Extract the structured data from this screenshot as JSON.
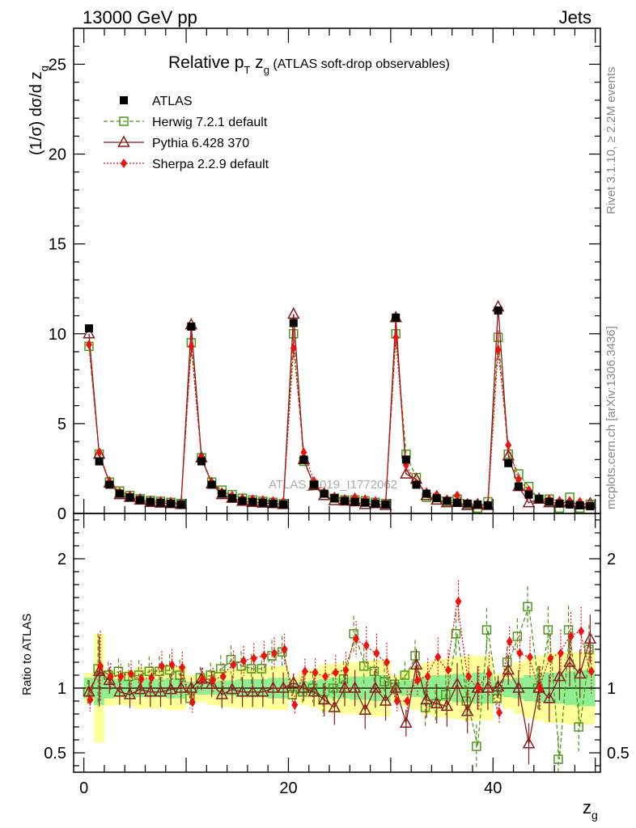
{
  "header": {
    "energy": "13000 GeV pp",
    "process": "Jets"
  },
  "title": {
    "main": "Relative p",
    "sub_T": "T",
    "mid": " z",
    "sub_g": "g",
    "tail": " (ATLAS soft-drop observables)"
  },
  "side_labels": {
    "rivet": "Rivet 3.1.10, ≥ 2.2M events",
    "mcplots": "mcplots.cern.ch [arXiv:1306.3436]"
  },
  "watermark": "ATLAS_2019_I1772062",
  "axes": {
    "ylabel_main": "(1/σ) dσ/d z",
    "ylabel_main_sub": "g",
    "ylabel_ratio": "Ratio to ATLAS",
    "xlabel": "z",
    "xlabel_sub": "g"
  },
  "colors": {
    "ATLAS": "#000000",
    "Herwig": "#4a9a1a",
    "Pythia": "#8b1a1a",
    "Sherpa": "#ee1111",
    "band_inner": "#90ee90",
    "band_outer": "#ffff99"
  },
  "chart_data": [
    {
      "type": "scatter",
      "panel": "main",
      "xlim": [
        -1,
        50.5
      ],
      "ylim": [
        0,
        27
      ],
      "x_ticks": [
        "0",
        "20",
        "40"
      ],
      "x_tick_values": [
        0,
        20,
        40
      ],
      "y_ticks": [
        "0",
        "5",
        "10",
        "15",
        "20",
        "25"
      ],
      "y_tick_values": [
        0,
        5,
        10,
        15,
        20,
        25
      ],
      "x": [
        0.5,
        1.5,
        2.5,
        3.5,
        4.5,
        5.5,
        6.5,
        7.5,
        8.5,
        9.5,
        10.5,
        11.5,
        12.5,
        13.5,
        14.5,
        15.5,
        16.5,
        17.5,
        18.5,
        19.5,
        20.5,
        21.5,
        22.5,
        23.5,
        24.5,
        25.5,
        26.5,
        27.5,
        28.5,
        29.5,
        30.5,
        31.5,
        32.5,
        33.5,
        34.5,
        35.5,
        36.5,
        37.5,
        38.5,
        39.5,
        40.5,
        41.5,
        42.5,
        43.5,
        44.5,
        45.5,
        46.5,
        47.5,
        48.5,
        49.5
      ],
      "series": [
        {
          "name": "ATLAS",
          "values": [
            10.3,
            2.9,
            1.6,
            1.1,
            0.9,
            0.75,
            0.65,
            0.6,
            0.55,
            0.5,
            10.4,
            2.9,
            1.6,
            1.1,
            0.85,
            0.7,
            0.65,
            0.6,
            0.55,
            0.5,
            10.6,
            3.0,
            1.6,
            1.1,
            0.85,
            0.7,
            0.65,
            0.6,
            0.55,
            0.5,
            10.9,
            3.0,
            1.6,
            1.1,
            0.85,
            0.7,
            0.6,
            0.55,
            0.5,
            0.45,
            11.3,
            2.8,
            1.5,
            1.05,
            0.8,
            0.65,
            0.55,
            0.5,
            0.45,
            0.4
          ]
        },
        {
          "name": "Herwig 7.2.1 default",
          "values": [
            9.3,
            3.3,
            1.75,
            1.25,
            1.0,
            0.82,
            0.72,
            0.68,
            0.62,
            0.55,
            9.5,
            3.1,
            1.75,
            1.3,
            1.05,
            0.85,
            0.75,
            0.68,
            0.62,
            0.55,
            10.0,
            2.9,
            1.6,
            1.0,
            0.85,
            0.75,
            0.75,
            0.7,
            0.62,
            0.55,
            10.0,
            3.3,
            2.0,
            0.9,
            0.75,
            0.65,
            0.8,
            0.5,
            0.3,
            0.65,
            9.8,
            3.3,
            2.2,
            1.5,
            0.8,
            0.8,
            0.3,
            0.9,
            0.3,
            0.5
          ]
        },
        {
          "name": "Pythia 6.428 370",
          "values": [
            10.0,
            3.3,
            1.7,
            1.05,
            0.9,
            0.75,
            0.62,
            0.58,
            0.55,
            0.5,
            10.5,
            3.1,
            1.65,
            1.05,
            0.85,
            0.68,
            0.62,
            0.58,
            0.55,
            0.5,
            11.1,
            3.0,
            1.55,
            1.0,
            0.72,
            0.7,
            0.65,
            0.5,
            0.55,
            0.45,
            10.9,
            2.2,
            1.9,
            1.0,
            0.75,
            0.6,
            0.62,
            0.45,
            0.5,
            0.45,
            11.5,
            3.2,
            1.5,
            0.6,
            0.8,
            0.6,
            0.6,
            0.6,
            0.5,
            0.55
          ]
        },
        {
          "name": "Sherpa 2.2.9 default",
          "values": [
            9.4,
            3.4,
            1.75,
            1.2,
            1.0,
            0.8,
            0.7,
            0.7,
            0.65,
            0.58,
            9.3,
            3.1,
            1.7,
            1.2,
            1.0,
            0.85,
            0.8,
            0.75,
            0.7,
            0.65,
            9.2,
            3.4,
            1.8,
            1.2,
            0.95,
            0.8,
            0.9,
            0.8,
            0.7,
            0.6,
            9.8,
            2.7,
            1.7,
            1.2,
            1.05,
            0.8,
            1.0,
            0.6,
            0.5,
            0.5,
            9.1,
            3.8,
            1.9,
            1.3,
            0.8,
            0.8,
            0.7,
            0.7,
            0.65,
            0.45
          ]
        }
      ]
    },
    {
      "type": "scatter",
      "panel": "ratio",
      "xlim": [
        -1,
        50.5
      ],
      "ylim": [
        0.35,
        2.35
      ],
      "y_ticks": [
        "0.5",
        "1",
        "2"
      ],
      "y_tick_values": [
        0.5,
        1,
        2
      ],
      "x": [
        0.5,
        1.5,
        2.5,
        3.5,
        4.5,
        5.5,
        6.5,
        7.5,
        8.5,
        9.5,
        10.5,
        11.5,
        12.5,
        13.5,
        14.5,
        15.5,
        16.5,
        17.5,
        18.5,
        19.5,
        20.5,
        21.5,
        22.5,
        23.5,
        24.5,
        25.5,
        26.5,
        27.5,
        28.5,
        29.5,
        30.5,
        31.5,
        32.5,
        33.5,
        34.5,
        35.5,
        36.5,
        37.5,
        38.5,
        39.5,
        40.5,
        41.5,
        42.5,
        43.5,
        44.5,
        45.5,
        46.5,
        47.5,
        48.5,
        49.5
      ],
      "band_inner": [
        0.08,
        0.13,
        0.08,
        0.07,
        0.07,
        0.07,
        0.07,
        0.07,
        0.08,
        0.08,
        0.05,
        0.05,
        0.05,
        0.06,
        0.06,
        0.07,
        0.07,
        0.07,
        0.08,
        0.08,
        0.04,
        0.05,
        0.06,
        0.07,
        0.08,
        0.08,
        0.09,
        0.09,
        0.1,
        0.1,
        0.05,
        0.06,
        0.07,
        0.09,
        0.1,
        0.1,
        0.11,
        0.11,
        0.12,
        0.12,
        0.06,
        0.07,
        0.08,
        0.1,
        0.11,
        0.12,
        0.12,
        0.13,
        0.14,
        0.14
      ],
      "band_outer": [
        0.12,
        0.42,
        0.14,
        0.13,
        0.14,
        0.16,
        0.16,
        0.16,
        0.17,
        0.17,
        0.1,
        0.11,
        0.13,
        0.14,
        0.15,
        0.16,
        0.16,
        0.16,
        0.17,
        0.17,
        0.09,
        0.13,
        0.15,
        0.18,
        0.19,
        0.2,
        0.2,
        0.21,
        0.22,
        0.22,
        0.1,
        0.14,
        0.17,
        0.2,
        0.22,
        0.23,
        0.24,
        0.25,
        0.25,
        0.25,
        0.11,
        0.16,
        0.2,
        0.23,
        0.25,
        0.27,
        0.27,
        0.28,
        0.28,
        0.28
      ],
      "series": [
        {
          "name": "Herwig 7.2.1 default",
          "values": [
            0.97,
            1.15,
            1.1,
            1.13,
            1.09,
            1.1,
            1.13,
            1.13,
            1.14,
            1.1,
            0.92,
            1.08,
            1.1,
            1.15,
            1.22,
            1.17,
            1.15,
            1.15,
            1.25,
            1.28,
            0.95,
            0.97,
            1.0,
            0.91,
            1.0,
            1.07,
            1.42,
            1.17,
            1.13,
            1.05,
            1.03,
            1.1,
            1.25,
            0.85,
            0.88,
            0.95,
            1.42,
            0.9,
            0.55,
            1.45,
            0.92,
            1.2,
            1.4,
            1.63,
            1.0,
            1.45,
            0.45,
            1.45,
            0.7,
            1.3
          ]
        },
        {
          "name": "Pythia 6.428 370",
          "values": [
            0.97,
            1.13,
            1.06,
            0.97,
            0.95,
            0.99,
            0.97,
            0.97,
            0.99,
            1.0,
            1.0,
            1.07,
            1.03,
            0.95,
            0.99,
            0.97,
            0.97,
            0.97,
            1.0,
            1.0,
            1.04,
            1.0,
            0.97,
            0.91,
            0.85,
            1.0,
            1.0,
            0.83,
            1.0,
            0.9,
            1.0,
            0.73,
            1.18,
            0.91,
            0.88,
            0.86,
            1.03,
            0.82,
            1.0,
            1.0,
            1.01,
            1.14,
            1.0,
            0.57,
            1.0,
            0.92,
            1.09,
            1.2,
            1.11,
            1.38
          ]
        },
        {
          "name": "Sherpa 2.2.9 default",
          "values": [
            0.91,
            1.17,
            1.09,
            1.09,
            1.11,
            1.07,
            1.08,
            1.17,
            1.18,
            1.16,
            0.89,
            1.07,
            1.06,
            1.09,
            1.18,
            1.21,
            1.23,
            1.25,
            1.27,
            1.3,
            0.87,
            1.13,
            1.12,
            1.09,
            1.12,
            1.14,
            1.38,
            1.33,
            1.27,
            1.2,
            0.9,
            0.9,
            1.06,
            1.09,
            1.24,
            1.14,
            1.67,
            1.09,
            1.0,
            1.11,
            0.81,
            1.36,
            1.27,
            1.24,
            1.0,
            1.23,
            1.27,
            1.4,
            1.44,
            1.13
          ]
        }
      ]
    }
  ]
}
